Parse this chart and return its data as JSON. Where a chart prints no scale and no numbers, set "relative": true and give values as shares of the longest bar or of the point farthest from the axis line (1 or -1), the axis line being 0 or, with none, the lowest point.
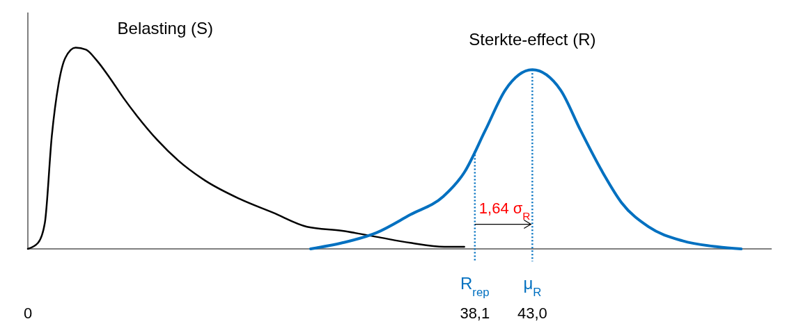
{
  "chart_data": {
    "type": "line",
    "relative": true,
    "xlim": [
      0,
      63.4
    ],
    "xticks": [
      0,
      {
        "value": 38.1,
        "label": "38,1"
      },
      {
        "value": 43,
        "label": "43,0"
      }
    ],
    "legend": false,
    "grid": false,
    "marker": "none",
    "line_style": "solid",
    "series": [
      {
        "name": "Belasting (S)",
        "color": "#000000",
        "x": [
          0,
          0.87,
          1.45,
          2.04,
          2.62,
          3.2,
          4.07,
          4.95,
          5.82,
          6.98,
          8.15,
          9.31,
          11.05,
          12.8,
          15.1,
          18.0,
          20.9,
          23.8,
          26.8,
          29.7,
          32.6,
          35.5,
          37.2
        ],
        "values": [
          0,
          0.03,
          0.13,
          0.56,
          0.82,
          0.95,
          1,
          0.99,
          0.94,
          0.85,
          0.75,
          0.66,
          0.54,
          0.44,
          0.34,
          0.25,
          0.18,
          0.11,
          0.09,
          0.06,
          0.03,
          0.01,
          0.01
        ]
      },
      {
        "name": "Sterkte-effect (R)",
        "color": "#0070c0",
        "x": [
          24.1,
          26.8,
          29.7,
          32.6,
          35.4,
          37.2,
          39.0,
          40.7,
          43.0,
          45.4,
          47.1,
          48.9,
          50.6,
          52.9,
          55.8,
          58.8,
          60.8
        ],
        "values": [
          0,
          0.03,
          0.08,
          0.17,
          0.26,
          0.38,
          0.59,
          0.79,
          0.89,
          0.79,
          0.59,
          0.39,
          0.23,
          0.11,
          0.04,
          0.01,
          0
        ]
      }
    ],
    "ref_lines": [
      {
        "axis": "x",
        "value": 38.1,
        "label": "R$_{rep}$",
        "color": "#0070c0",
        "line_style": "dotted"
      },
      {
        "axis": "x",
        "value": 43,
        "label": "μ$_{R}$",
        "color": "#0070c0",
        "line_style": "dotted"
      }
    ],
    "annotations": [
      {
        "text": "1,64 σ$_{R}$",
        "x": 38.1,
        "y": 0.15
      }
    ]
  }
}
